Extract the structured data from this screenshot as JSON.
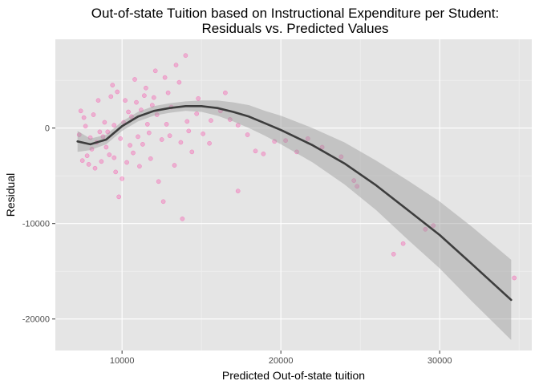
{
  "chart_data": {
    "type": "scatter",
    "title": "Out-of-state Tuition based on Instructional Expenditure per Student:",
    "subtitle": "Residuals vs. Predicted Values",
    "xlabel": "Predicted Out-of-state tuition",
    "ylabel": "Residual",
    "xlim": [
      5800,
      35800
    ],
    "ylim": [
      -23300,
      9300
    ],
    "x_ticks": [
      10000,
      20000,
      30000
    ],
    "x_tick_labels": [
      "10000",
      "20000",
      "30000"
    ],
    "y_ticks": [
      0,
      -10000,
      -20000
    ],
    "y_tick_labels": [
      "0",
      "-10000",
      "-20000"
    ],
    "grid": true,
    "legend": "none",
    "point_color": "#FF1493",
    "point_alpha": 0.25,
    "line_color": "#3d3d3d",
    "band_color": "#999999",
    "smooth": {
      "x": [
        7200,
        8000,
        9000,
        10000,
        11000,
        12000,
        13000,
        14000,
        15000,
        16000,
        17000,
        18000,
        19000,
        20000,
        22000,
        24000,
        26000,
        28000,
        30000,
        32000,
        34500
      ],
      "y": [
        -1400,
        -1700,
        -1200,
        200,
        1200,
        1800,
        2100,
        2300,
        2300,
        2100,
        1700,
        1200,
        500,
        -200,
        -1800,
        -3700,
        -6000,
        -8600,
        -11200,
        -14200,
        -18000
      ],
      "ymin": [
        -2500,
        -2300,
        -1700,
        -300,
        700,
        1300,
        1600,
        1800,
        1700,
        1300,
        700,
        0,
        -800,
        -1700,
        -3600,
        -5900,
        -8600,
        -11700,
        -14700,
        -18100,
        -22200
      ],
      "ymax": [
        -300,
        -1100,
        -700,
        700,
        1700,
        2300,
        2600,
        2800,
        2900,
        2900,
        2700,
        2400,
        1800,
        1300,
        0,
        -1500,
        -3400,
        -5500,
        -7700,
        -10300,
        -13800
      ]
    },
    "points": [
      [
        9400,
        4500
      ],
      [
        9700,
        3800
      ],
      [
        10200,
        2900
      ],
      [
        10800,
        5100
      ],
      [
        11500,
        4200
      ],
      [
        12100,
        6000
      ],
      [
        12700,
        5300
      ],
      [
        13400,
        6600
      ],
      [
        14000,
        7600
      ],
      [
        13600,
        4800
      ],
      [
        12900,
        3700
      ],
      [
        11900,
        2400
      ],
      [
        11200,
        1900
      ],
      [
        10600,
        1200
      ],
      [
        10100,
        600
      ],
      [
        9500,
        300
      ],
      [
        9100,
        -400
      ],
      [
        8800,
        -900
      ],
      [
        8400,
        -1500
      ],
      [
        8100,
        -2200
      ],
      [
        7800,
        -2900
      ],
      [
        7500,
        -3400
      ],
      [
        7900,
        -3800
      ],
      [
        8300,
        -4200
      ],
      [
        8700,
        -3500
      ],
      [
        9200,
        -2800
      ],
      [
        9600,
        -4600
      ],
      [
        10000,
        -5300
      ],
      [
        9800,
        -7200
      ],
      [
        11100,
        -4000
      ],
      [
        11800,
        -3200
      ],
      [
        12300,
        -5600
      ],
      [
        12600,
        -7700
      ],
      [
        13800,
        -9500
      ],
      [
        13300,
        -3900
      ],
      [
        14400,
        -2500
      ],
      [
        15100,
        -600
      ],
      [
        15600,
        800
      ],
      [
        16200,
        1800
      ],
      [
        16800,
        900
      ],
      [
        17300,
        300
      ],
      [
        17900,
        -700
      ],
      [
        18400,
        -2400
      ],
      [
        18900,
        -2700
      ],
      [
        19600,
        -1400
      ],
      [
        20300,
        -1300
      ],
      [
        21000,
        -2500
      ],
      [
        21700,
        -1100
      ],
      [
        22600,
        -2000
      ],
      [
        23800,
        -3000
      ],
      [
        24600,
        -5500
      ],
      [
        24800,
        -6100
      ],
      [
        27100,
        -13200
      ],
      [
        27700,
        -12100
      ],
      [
        29100,
        -10600
      ],
      [
        29600,
        -10200
      ],
      [
        34700,
        -15700
      ],
      [
        17300,
        -6600
      ],
      [
        15500,
        -1600
      ],
      [
        14700,
        1500
      ],
      [
        16500,
        3700
      ],
      [
        14800,
        3100
      ],
      [
        13100,
        2200
      ],
      [
        12200,
        1400
      ],
      [
        7400,
        1800
      ],
      [
        7600,
        1100
      ],
      [
        8500,
        2900
      ],
      [
        9300,
        3300
      ],
      [
        10500,
        -1800
      ],
      [
        11000,
        -900
      ],
      [
        11600,
        400
      ],
      [
        12000,
        3200
      ],
      [
        8900,
        600
      ],
      [
        8600,
        -400
      ],
      [
        9900,
        -1100
      ],
      [
        10400,
        1700
      ],
      [
        10900,
        2700
      ],
      [
        11400,
        3400
      ],
      [
        7300,
        -700
      ],
      [
        7700,
        200
      ],
      [
        8200,
        1400
      ],
      [
        8000,
        -1000
      ],
      [
        9000,
        -2000
      ],
      [
        9500,
        -3100
      ],
      [
        10300,
        -3600
      ],
      [
        10700,
        -2600
      ],
      [
        11300,
        -1700
      ],
      [
        12500,
        -1200
      ],
      [
        13000,
        -800
      ],
      [
        13700,
        -1500
      ],
      [
        14200,
        -300
      ],
      [
        12800,
        400
      ],
      [
        11700,
        -500
      ],
      [
        14100,
        700
      ]
    ]
  }
}
